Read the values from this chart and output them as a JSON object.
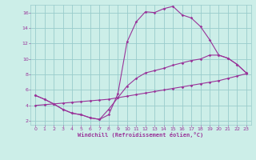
{
  "xlabel": "Windchill (Refroidissement éolien,°C)",
  "bg_color": "#cceee8",
  "grid_color": "#99cccc",
  "line_color": "#993399",
  "xlim": [
    -0.5,
    23.5
  ],
  "ylim": [
    1.5,
    17.0
  ],
  "xticks": [
    0,
    1,
    2,
    3,
    4,
    5,
    6,
    7,
    8,
    9,
    10,
    11,
    12,
    13,
    14,
    15,
    16,
    17,
    18,
    19,
    20,
    21,
    22,
    23
  ],
  "yticks": [
    2,
    4,
    6,
    8,
    10,
    12,
    14,
    16
  ],
  "line1_x": [
    0,
    1,
    2,
    3,
    4,
    5,
    6,
    7,
    8,
    9,
    10,
    11,
    12,
    13,
    14,
    15,
    16,
    17,
    18,
    19,
    20,
    21,
    22,
    23
  ],
  "line1_y": [
    4.0,
    4.1,
    4.2,
    4.3,
    4.4,
    4.5,
    4.6,
    4.7,
    4.8,
    5.0,
    5.2,
    5.4,
    5.6,
    5.8,
    6.0,
    6.2,
    6.4,
    6.6,
    6.8,
    7.0,
    7.2,
    7.5,
    7.8,
    8.1
  ],
  "line2_x": [
    0,
    1,
    2,
    3,
    4,
    5,
    6,
    7,
    8,
    9,
    10,
    11,
    12,
    13,
    14,
    15,
    16,
    17,
    18,
    19,
    20,
    21,
    22,
    23
  ],
  "line2_y": [
    5.3,
    4.8,
    4.2,
    3.5,
    3.0,
    2.8,
    2.4,
    2.2,
    3.5,
    5.0,
    6.5,
    7.5,
    8.2,
    8.5,
    8.8,
    9.2,
    9.5,
    9.8,
    10.0,
    10.5,
    10.5,
    10.1,
    9.3,
    8.2
  ],
  "line3_x": [
    0,
    1,
    2,
    3,
    4,
    5,
    6,
    7,
    8,
    9,
    10,
    11,
    12,
    13,
    14,
    15,
    16,
    17,
    18,
    19,
    20,
    21,
    22,
    23
  ],
  "line3_y": [
    5.3,
    4.8,
    4.2,
    3.5,
    3.0,
    2.8,
    2.4,
    2.2,
    2.8,
    5.5,
    12.2,
    14.8,
    16.1,
    16.0,
    16.5,
    16.8,
    15.7,
    15.3,
    14.2,
    12.5,
    10.5,
    10.1,
    9.3,
    8.2
  ]
}
